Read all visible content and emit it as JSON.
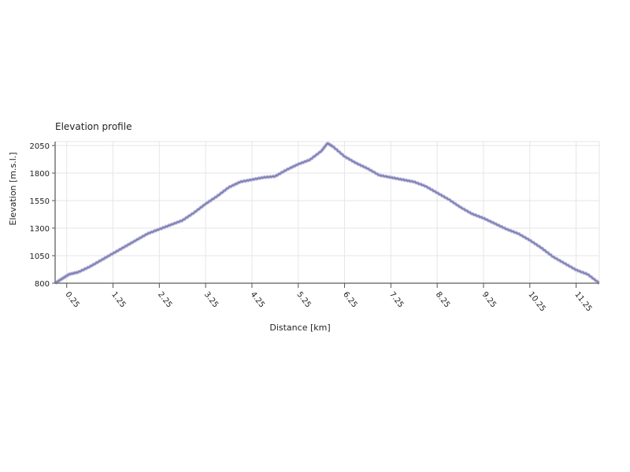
{
  "chart_data": {
    "type": "area",
    "title": "Elevation profile",
    "xlabel": "Distance [km]",
    "ylabel": "Elevation [m.s.l.]",
    "xlim": [
      0,
      11.75
    ],
    "ylim": [
      800,
      2050
    ],
    "x_ticks": [
      0.25,
      1.25,
      2.25,
      3.25,
      4.25,
      5.25,
      6.25,
      7.25,
      8.25,
      9.25,
      10.25,
      11.25
    ],
    "x_tick_labels": [
      "0.25",
      "1.25",
      "2.25",
      "3.25",
      "4.25",
      "5.25",
      "6.25",
      "7.25",
      "8.25",
      "9.25",
      "10.25",
      "11.25"
    ],
    "y_ticks": [
      800,
      1050,
      1300,
      1550,
      1800,
      2050
    ],
    "y_tick_labels": [
      "800",
      "1050",
      "1300",
      "1550",
      "1800",
      "2050"
    ],
    "grid": true,
    "line_color": "#7a7ab4",
    "series": [
      {
        "x": [
          0,
          0.15,
          0.3,
          0.5,
          0.75,
          1.0,
          1.25,
          1.5,
          1.75,
          2.0,
          2.25,
          2.5,
          2.75,
          3.0,
          3.25,
          3.5,
          3.75,
          4.0,
          4.25,
          4.5,
          4.75,
          5.0,
          5.25,
          5.5,
          5.75,
          5.88,
          6.0,
          6.25,
          6.5,
          6.75,
          7.0,
          7.25,
          7.5,
          7.75,
          8.0,
          8.25,
          8.5,
          8.75,
          9.0,
          9.25,
          9.5,
          9.75,
          10.0,
          10.25,
          10.5,
          10.75,
          11.0,
          11.25,
          11.5,
          11.75
        ],
        "y": [
          800,
          840,
          880,
          900,
          950,
          1010,
          1070,
          1130,
          1190,
          1250,
          1290,
          1330,
          1370,
          1440,
          1520,
          1590,
          1670,
          1720,
          1740,
          1760,
          1770,
          1830,
          1880,
          1920,
          2000,
          2070,
          2040,
          1950,
          1890,
          1840,
          1780,
          1760,
          1740,
          1720,
          1680,
          1620,
          1560,
          1490,
          1430,
          1390,
          1340,
          1290,
          1250,
          1190,
          1120,
          1040,
          980,
          920,
          880,
          800
        ]
      }
    ]
  }
}
